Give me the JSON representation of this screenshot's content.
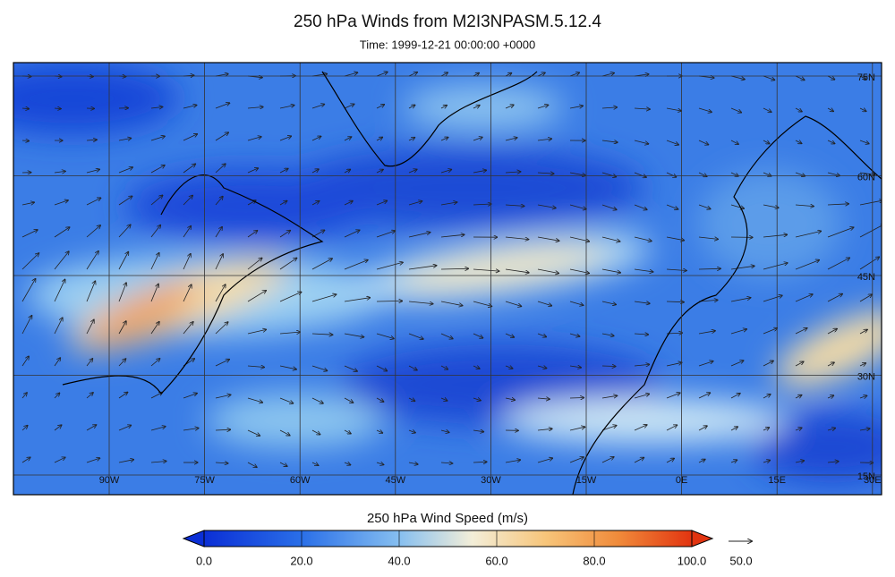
{
  "title": "250 hPa Winds from M2I3NPASM.5.12.4",
  "subtitle": "Time: 1999-12-21 00:00:00 +0000",
  "map": {
    "lon_labels": [
      "90W",
      "75W",
      "60W",
      "45W",
      "30W",
      "15W",
      "0E",
      "15E",
      "30E"
    ],
    "lat_labels": [
      "75N",
      "60N",
      "45N",
      "30N",
      "15N"
    ]
  },
  "colorbar": {
    "label": "250 hPa Wind Speed (m/s)",
    "lim": [
      0,
      100
    ],
    "ticks": [
      {
        "value": 0,
        "label": "0.0"
      },
      {
        "value": 20,
        "label": "20.0"
      },
      {
        "value": 40,
        "label": "40.0"
      },
      {
        "value": 60,
        "label": "60.0"
      },
      {
        "value": 80,
        "label": "80.0"
      },
      {
        "value": 100,
        "label": "100.0"
      }
    ]
  },
  "reference_vector_label": "50.0"
}
